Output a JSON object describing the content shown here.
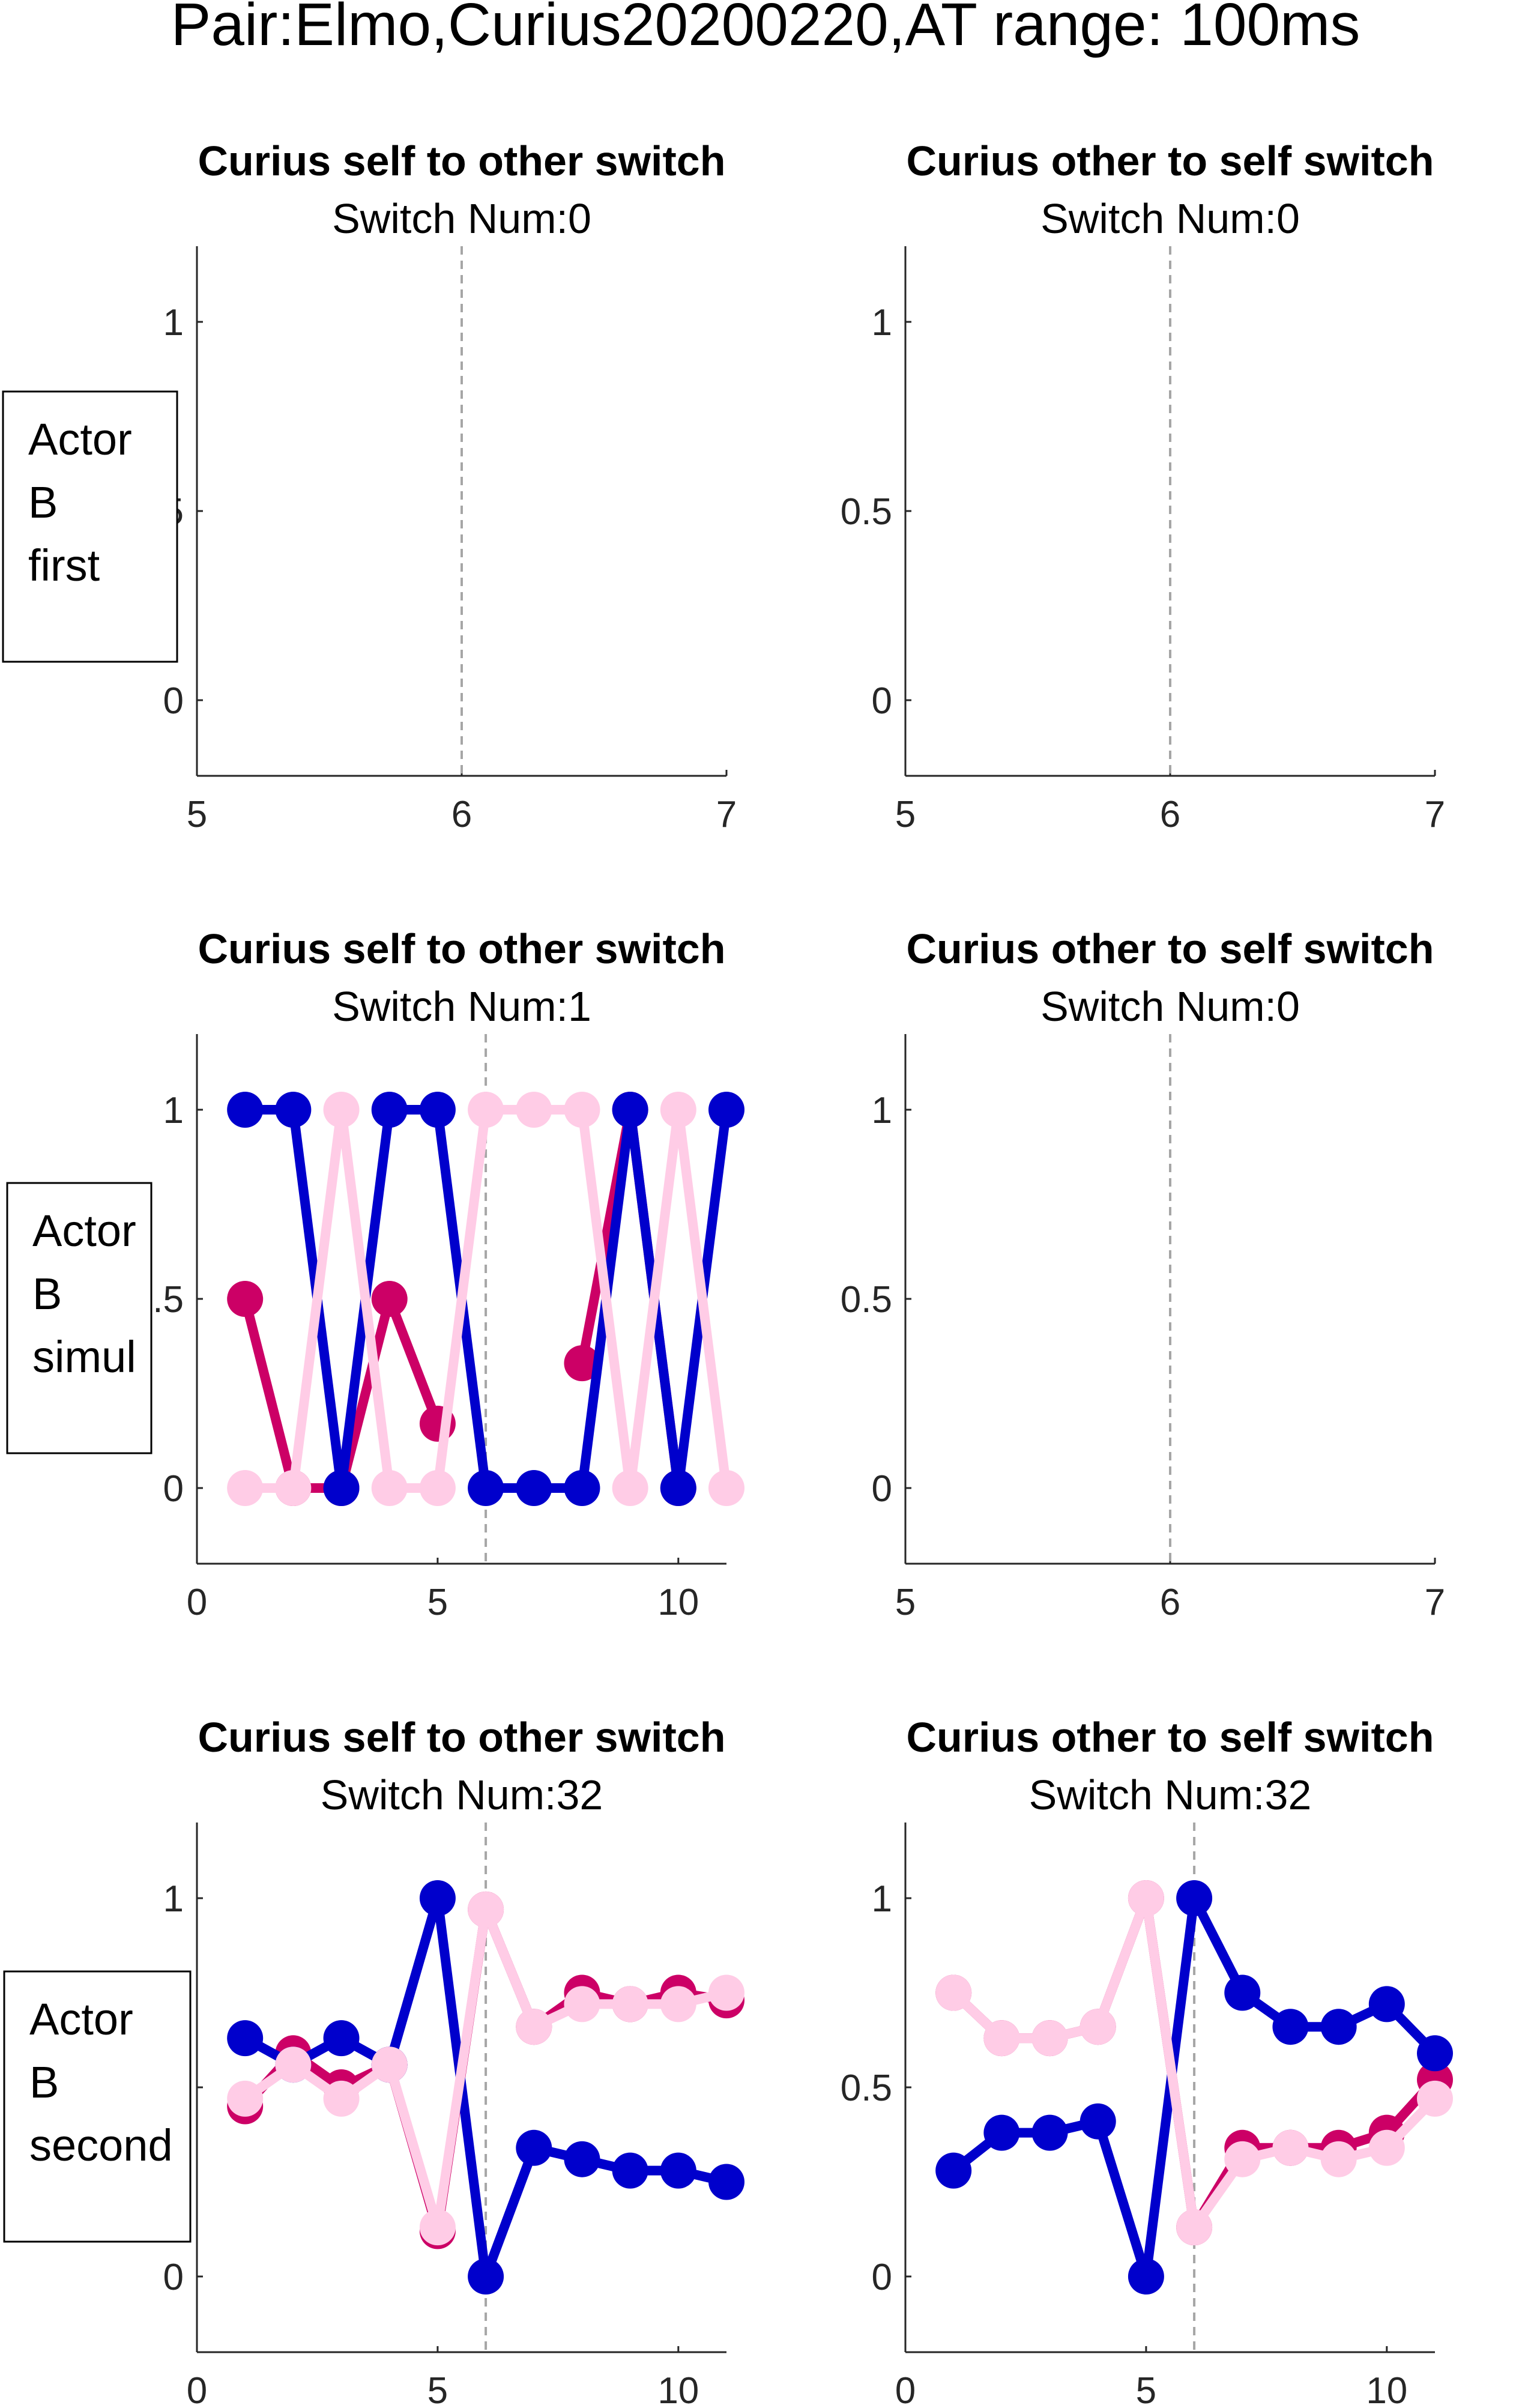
{
  "figure": {
    "suptitle": "Pair:Elmo,Curius20200220,AT range: 100ms",
    "colors": {
      "blue": "#0000CC",
      "magenta": "#CC0066",
      "pink": "#FFCCE6",
      "axis": "#262626",
      "dashed": "#A6A6A6"
    }
  },
  "chart_data": [
    {
      "type": "line",
      "title": "Curius self to other switch",
      "subtitle": "Switch Num:0",
      "row_label": [
        "Actor",
        "B",
        "first"
      ],
      "xlim": [
        5,
        7
      ],
      "ylim": [
        -0.2,
        1.2
      ],
      "xticks": [
        "5",
        "6",
        "7"
      ],
      "yticks": [
        "0",
        "0.5",
        "1"
      ],
      "vline": 6,
      "x": [],
      "series": []
    },
    {
      "type": "line",
      "title": "Curius other to self switch",
      "subtitle": "Switch Num:0",
      "xlim": [
        5,
        7
      ],
      "ylim": [
        -0.2,
        1.2
      ],
      "xticks": [
        "5",
        "6",
        "7"
      ],
      "yticks": [
        "0",
        "0.5",
        "1"
      ],
      "vline": 6,
      "x": [],
      "series": []
    },
    {
      "type": "line",
      "title": "Curius self to other switch",
      "subtitle": "Switch Num:1",
      "row_label": [
        "Actor",
        "B",
        "simul"
      ],
      "xlim": [
        0,
        11
      ],
      "ylim": [
        -0.2,
        1.2
      ],
      "xticks": [
        "0",
        "5",
        "10"
      ],
      "yticks": [
        "0",
        "0.5",
        "1"
      ],
      "vline": 6,
      "x": [
        1,
        2,
        3,
        4,
        5,
        6,
        7,
        8,
        9,
        10,
        11
      ],
      "series": [
        {
          "color": "#CC0066",
          "values": [
            0.5,
            0,
            0,
            0.5,
            0.17,
            null,
            null,
            0.33,
            1,
            0,
            null
          ]
        },
        {
          "color": "#0000CC",
          "values": [
            1,
            1,
            0,
            1,
            1,
            0,
            0,
            0,
            1,
            0,
            1
          ]
        },
        {
          "color": "#FFCCE6",
          "values": [
            0,
            0,
            1,
            0,
            0,
            1,
            1,
            1,
            0,
            1,
            0
          ]
        }
      ]
    },
    {
      "type": "line",
      "title": "Curius other to self switch",
      "subtitle": "Switch Num:0",
      "xlim": [
        5,
        7
      ],
      "ylim": [
        -0.2,
        1.2
      ],
      "xticks": [
        "5",
        "6",
        "7"
      ],
      "yticks": [
        "0",
        "0.5",
        "1"
      ],
      "vline": 6,
      "x": [],
      "series": []
    },
    {
      "type": "line",
      "title": "Curius self to other switch",
      "subtitle": "Switch Num:32",
      "row_label": [
        "Actor",
        "B",
        "second"
      ],
      "xlim": [
        0,
        11
      ],
      "ylim": [
        -0.2,
        1.2
      ],
      "xticks": [
        "0",
        "5",
        "10"
      ],
      "yticks": [
        "0",
        "0.5",
        "1"
      ],
      "vline": 6,
      "x": [
        1,
        2,
        3,
        4,
        5,
        6,
        7,
        8,
        9,
        10,
        11
      ],
      "series": [
        {
          "color": "#CC0066",
          "values": [
            0.45,
            0.59,
            0.5,
            0.56,
            0.12,
            0.97,
            0.66,
            0.75,
            0.72,
            0.75,
            0.73
          ]
        },
        {
          "color": "#0000CC",
          "values": [
            0.63,
            0.56,
            0.63,
            0.56,
            1,
            0,
            0.34,
            0.31,
            0.28,
            0.28,
            0.25
          ]
        },
        {
          "color": "#FFCCE6",
          "values": [
            0.47,
            0.56,
            0.47,
            0.56,
            0.13,
            0.97,
            0.66,
            0.72,
            0.72,
            0.72,
            0.75
          ]
        }
      ]
    },
    {
      "type": "line",
      "title": "Curius other to self switch",
      "subtitle": "Switch Num:32",
      "xlim": [
        0,
        11
      ],
      "ylim": [
        -0.2,
        1.2
      ],
      "xticks": [
        "0",
        "5",
        "10"
      ],
      "yticks": [
        "0",
        "0.5",
        "1"
      ],
      "vline": 6,
      "x": [
        1,
        2,
        3,
        4,
        5,
        6,
        7,
        8,
        9,
        10,
        11
      ],
      "series": [
        {
          "color": "#CC0066",
          "values": [
            0.75,
            0.63,
            0.63,
            0.66,
            1,
            0.13,
            0.34,
            0.34,
            0.34,
            0.38,
            0.52
          ]
        },
        {
          "color": "#0000CC",
          "values": [
            0.28,
            0.38,
            0.38,
            0.41,
            0,
            1,
            0.75,
            0.66,
            0.66,
            0.72,
            0.59
          ]
        },
        {
          "color": "#FFCCE6",
          "values": [
            0.75,
            0.63,
            0.63,
            0.66,
            1,
            0.13,
            0.31,
            0.34,
            0.31,
            0.34,
            0.47
          ]
        }
      ]
    }
  ]
}
